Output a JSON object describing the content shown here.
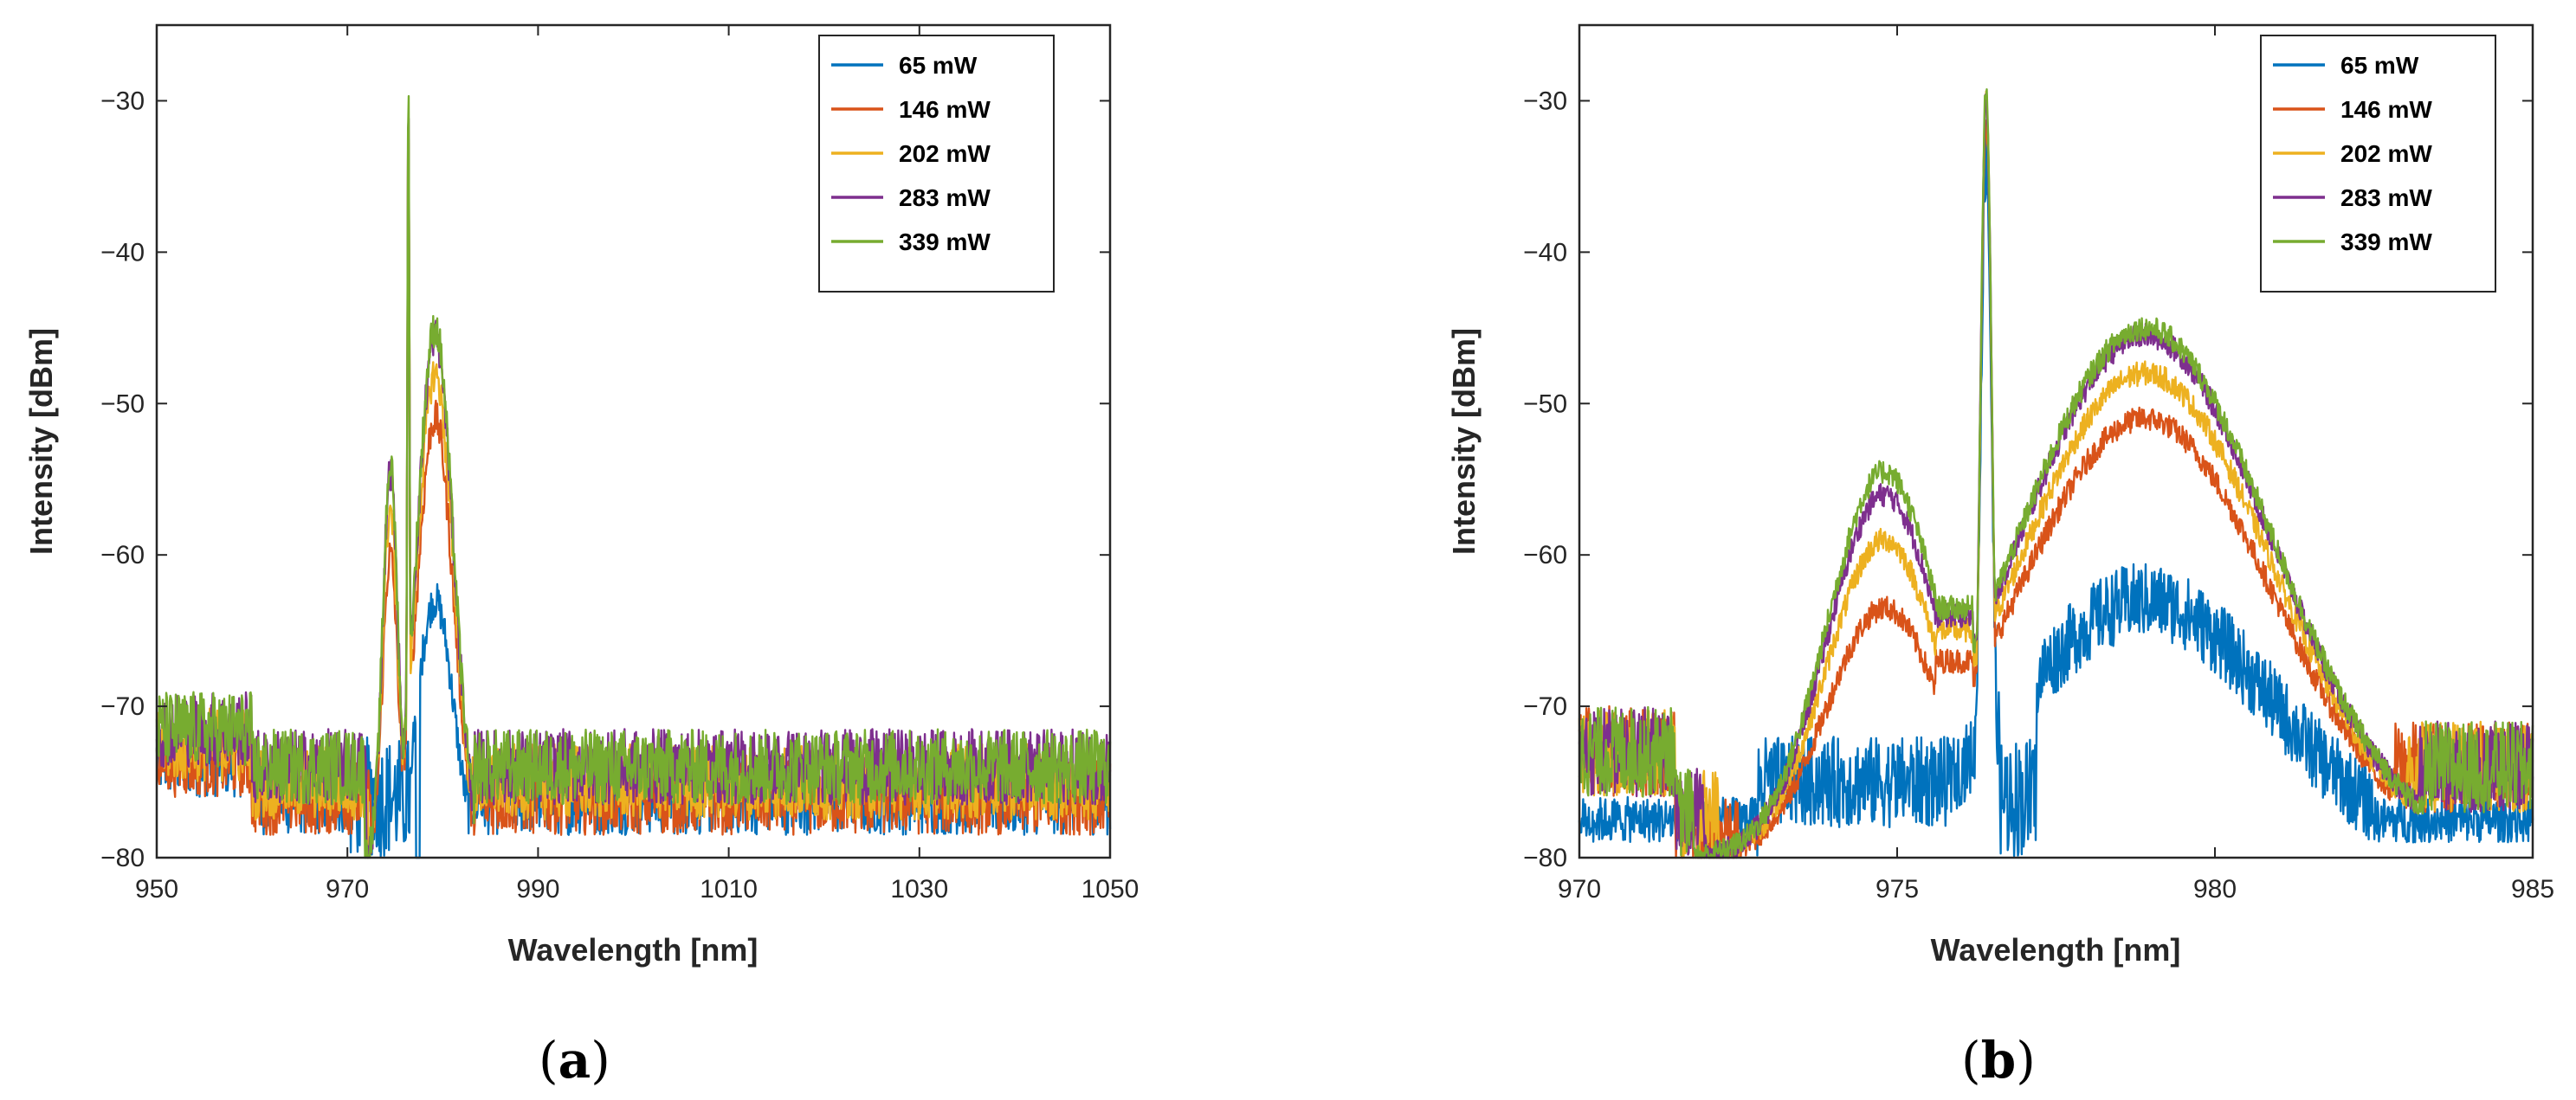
{
  "chart_data": [
    {
      "type": "line",
      "panel": "a",
      "caption_open": "(",
      "caption_letter": "a",
      "caption_close": ")",
      "xlabel": "Wavelength [nm]",
      "ylabel": "Intensity [dBm]",
      "xlim": [
        950,
        1050
      ],
      "ylim": [
        -80,
        -25
      ],
      "xticks": [
        950,
        970,
        990,
        1010,
        1030,
        1050
      ],
      "yticks": [
        -80,
        -70,
        -60,
        -50,
        -40,
        -30
      ],
      "ytick_labels": [
        "−80",
        "−70",
        "−60",
        "−50",
        "−40",
        "−30"
      ],
      "legend_position": "top-right",
      "series": [
        {
          "name": "65 mW",
          "color": "#0072BD",
          "signal_lo": 976.8,
          "signal_hi": 982.5,
          "peak_nm": 979.2,
          "peak_dbm": -63,
          "laser_nm": 976.4,
          "laser_dbm": -34,
          "noise_floor": -76
        },
        {
          "name": "146 mW",
          "color": "#D95319",
          "signal_lo": 972.5,
          "signal_hi": 982.8,
          "peak_nm": 979.2,
          "peak_dbm": -51,
          "laser_nm": 976.4,
          "laser_dbm": -31,
          "noise_floor": -76
        },
        {
          "name": "202 mW",
          "color": "#EDB120",
          "signal_lo": 972.2,
          "signal_hi": 983.0,
          "peak_nm": 979.2,
          "peak_dbm": -48,
          "laser_nm": 976.4,
          "laser_dbm": -30,
          "noise_floor": -75
        },
        {
          "name": "283 mW",
          "color": "#7E2F8E",
          "signal_lo": 972.0,
          "signal_hi": 983.2,
          "peak_nm": 979.2,
          "peak_dbm": -45.5,
          "laser_nm": 976.4,
          "laser_dbm": -29.5,
          "noise_floor": -74
        },
        {
          "name": "339 mW",
          "color": "#77AC30",
          "signal_lo": 971.8,
          "signal_hi": 983.3,
          "peak_nm": 979.2,
          "peak_dbm": -45,
          "laser_nm": 976.4,
          "laser_dbm": -29.2,
          "noise_floor": -74
        }
      ]
    },
    {
      "type": "line",
      "panel": "b",
      "caption_open": "(",
      "caption_letter": "b",
      "caption_close": ")",
      "xlabel": "Wavelength [nm]",
      "ylabel": "Intensity [dBm]",
      "xlim": [
        970,
        985
      ],
      "ylim": [
        -80,
        -25
      ],
      "xticks": [
        970,
        975,
        980,
        985
      ],
      "yticks": [
        -80,
        -70,
        -60,
        -50,
        -40,
        -30
      ],
      "ytick_labels": [
        "−80",
        "−70",
        "−60",
        "−50",
        "−40",
        "−30"
      ],
      "legend_position": "top-right",
      "series": [
        {
          "name": "65 mW",
          "color": "#0072BD",
          "left_peak_nm": 974.8,
          "left_peak_dbm": -78,
          "dip_nm": 976.0,
          "dip_dbm": -78,
          "laser_nm": 976.4,
          "laser_dbm": -34,
          "right_peak_nm": 978.9,
          "right_peak_dbm": -63,
          "left_edge_nm": 972.8,
          "right_edge_nm": 982.5
        },
        {
          "name": "146 mW",
          "color": "#D95319",
          "left_peak_nm": 974.8,
          "left_peak_dbm": -63.5,
          "dip_nm": 976.0,
          "dip_dbm": -67,
          "laser_nm": 976.4,
          "laser_dbm": -31,
          "right_peak_nm": 978.9,
          "right_peak_dbm": -51,
          "left_edge_nm": 972.5,
          "right_edge_nm": 982.8
        },
        {
          "name": "202 mW",
          "color": "#EDB120",
          "left_peak_nm": 974.8,
          "left_peak_dbm": -59,
          "dip_nm": 976.0,
          "dip_dbm": -65,
          "laser_nm": 976.4,
          "laser_dbm": -30,
          "right_peak_nm": 978.9,
          "right_peak_dbm": -48,
          "left_edge_nm": 972.2,
          "right_edge_nm": 983.0
        },
        {
          "name": "283 mW",
          "color": "#7E2F8E",
          "left_peak_nm": 974.8,
          "left_peak_dbm": -56,
          "dip_nm": 976.0,
          "dip_dbm": -64,
          "laser_nm": 976.4,
          "laser_dbm": -29.5,
          "right_peak_nm": 978.9,
          "right_peak_dbm": -45.5,
          "left_edge_nm": 972.0,
          "right_edge_nm": 983.2
        },
        {
          "name": "339 mW",
          "color": "#77AC30",
          "left_peak_nm": 974.8,
          "left_peak_dbm": -54.5,
          "dip_nm": 976.0,
          "dip_dbm": -63.5,
          "laser_nm": 976.4,
          "laser_dbm": -29.2,
          "right_peak_nm": 978.9,
          "right_peak_dbm": -45,
          "left_edge_nm": 971.8,
          "right_edge_nm": 983.3
        }
      ]
    }
  ]
}
